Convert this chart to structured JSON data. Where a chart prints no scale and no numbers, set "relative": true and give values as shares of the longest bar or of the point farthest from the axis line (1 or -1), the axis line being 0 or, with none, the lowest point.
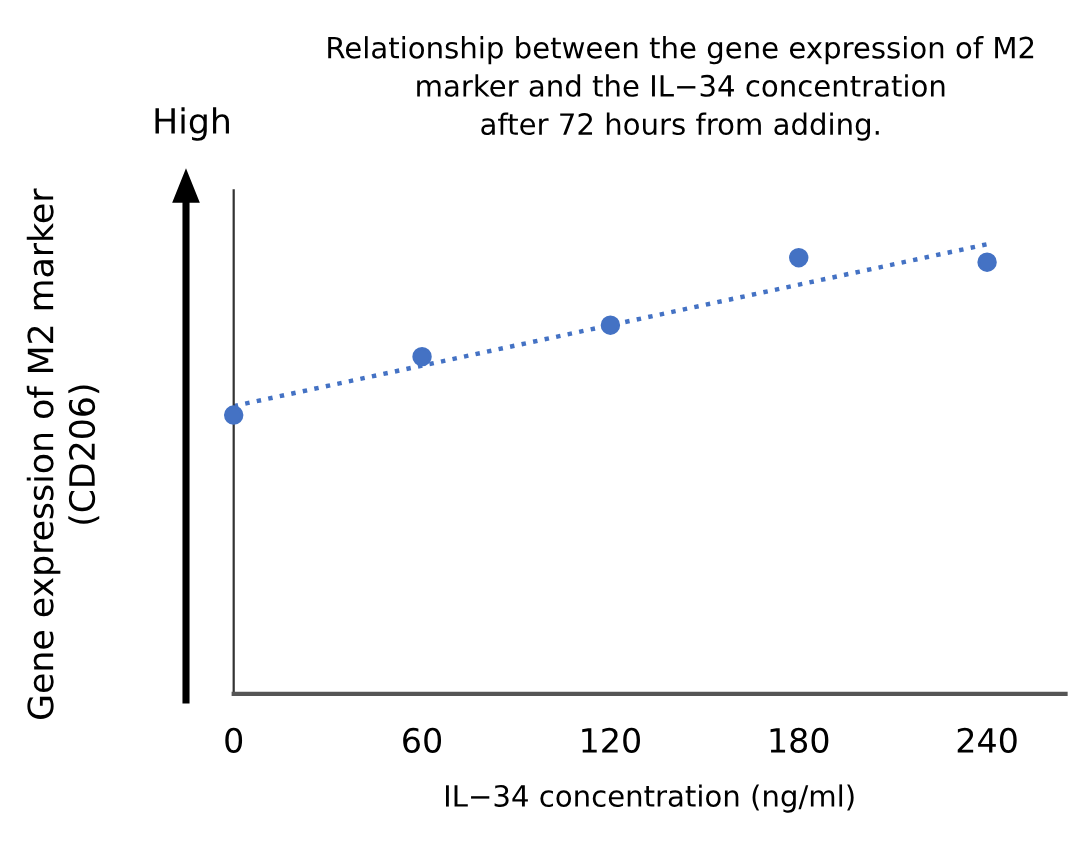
{
  "chart_data": {
    "type": "scatter",
    "title": "Relationship between the gene expression of M2\nmarker and the IL−34 concentration\nafter 72 hours from adding.",
    "xlabel": "IL−34 concentration (ng/ml)",
    "ylabel": "Gene expression of M2 marker\n(CD206)",
    "annotations": [
      "High"
    ],
    "relative": true,
    "xlim": [
      0,
      265
    ],
    "xticks": [
      0,
      60,
      120,
      180,
      240
    ],
    "grid": false,
    "legend": false,
    "marker": "circle",
    "series": [
      {
        "color": "#4472c4",
        "x": [
          0,
          60,
          120,
          180,
          240
        ],
        "values": [
          0.62,
          0.75,
          0.82,
          0.97,
          0.96
        ]
      },
      {
        "type": "line",
        "color": "#4472c4",
        "line_style": "dotted",
        "marker": "none",
        "x": [
          0,
          240
        ],
        "values": [
          0.64,
          1.0
        ]
      }
    ]
  }
}
